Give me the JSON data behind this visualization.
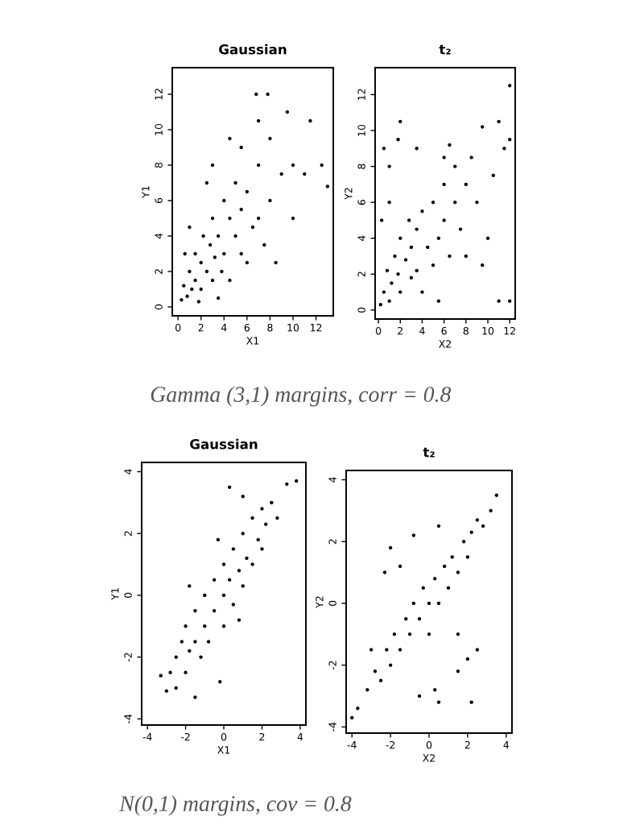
{
  "chart_data": [
    {
      "type": "scatter",
      "title": "Gaussian",
      "xlabel": "X1",
      "ylabel": "Y1",
      "xlim": [
        -0.5,
        13.5
      ],
      "ylim": [
        -0.5,
        13.5
      ],
      "xticks": [
        0,
        2,
        4,
        6,
        8,
        10,
        12
      ],
      "yticks": [
        0,
        2,
        4,
        6,
        8,
        10,
        12
      ],
      "grid": false,
      "legend": false,
      "marker": "circle",
      "annotations": [
        "Gamma (3,1) margins, corr = 0.8"
      ],
      "series": [
        {
          "color": "#000000",
          "x": [
            0.3,
            0.5,
            0.8,
            1,
            1.2,
            1.5,
            1.5,
            2,
            2,
            2.2,
            2.5,
            2.8,
            3,
            3,
            3.2,
            3.5,
            3.8,
            4,
            4,
            4.5,
            4.5,
            5,
            5,
            5.5,
            5.5,
            6,
            6,
            6.5,
            7,
            7,
            7.5,
            8,
            8,
            8.5,
            9,
            10,
            11,
            11.5,
            12.5,
            13,
            10,
            7,
            7.8,
            6.8,
            4.5,
            3,
            2.5,
            1,
            0.6,
            9.5,
            3.5,
            1.8,
            5.5
          ],
          "values": [
            0.4,
            1.2,
            0.6,
            2,
            1,
            3,
            1.5,
            2.5,
            1,
            4,
            2,
            3.5,
            1.5,
            5,
            2.8,
            4,
            2,
            6,
            3,
            5,
            1.5,
            4,
            7,
            3,
            5.5,
            6.5,
            2.5,
            4.5,
            5,
            8,
            3.5,
            6,
            9.5,
            2.5,
            7.5,
            8,
            7.5,
            10.5,
            8,
            6.8,
            5,
            10.5,
            12,
            12,
            9.5,
            8,
            7,
            4.5,
            3,
            11,
            0.5,
            0.3,
            9
          ]
        }
      ]
    },
    {
      "type": "scatter",
      "title": "t₂",
      "xlabel": "X2",
      "ylabel": "Y2",
      "xlim": [
        -0.3,
        12.5
      ],
      "ylim": [
        -0.5,
        13.5
      ],
      "xticks": [
        0,
        2,
        4,
        6,
        8,
        10,
        12
      ],
      "yticks": [
        0,
        2,
        4,
        6,
        8,
        10,
        12
      ],
      "grid": false,
      "legend": false,
      "marker": "circle",
      "series": [
        {
          "color": "#000000",
          "x": [
            0.2,
            0.5,
            0.8,
            1,
            1.2,
            1.5,
            1.8,
            2,
            2,
            2.5,
            2.8,
            3,
            3,
            3.5,
            3.5,
            4,
            4,
            4.5,
            5,
            5,
            5.5,
            6,
            6,
            6.5,
            7,
            7,
            7.5,
            8,
            8.5,
            9,
            9.5,
            10,
            11,
            11.5,
            12,
            12,
            10.5,
            0.5,
            1,
            1,
            2,
            1.8,
            3.5,
            6.5,
            6,
            8,
            9.5,
            11,
            12,
            5.5,
            0.3
          ],
          "values": [
            0.3,
            1,
            2.2,
            0.5,
            1.5,
            3,
            2,
            4,
            1,
            2.8,
            5,
            1.8,
            3.5,
            4.5,
            2.2,
            5.5,
            1,
            3.5,
            6,
            2.5,
            4,
            7,
            5,
            3,
            8,
            6,
            4.5,
            7,
            8.5,
            6,
            10.2,
            4,
            10.5,
            9,
            9.5,
            12.5,
            7.5,
            9,
            8,
            6,
            10.5,
            9.5,
            9,
            9.2,
            8.5,
            3,
            2.5,
            0.5,
            0.5,
            0.5,
            5
          ]
        }
      ]
    },
    {
      "type": "scatter",
      "title": "Gaussian",
      "xlabel": "X1",
      "ylabel": "Y1",
      "xlim": [
        -4.3,
        4.3
      ],
      "ylim": [
        -4.2,
        4.3
      ],
      "xticks": [
        -4,
        -2,
        0,
        2,
        4
      ],
      "yticks": [
        -4,
        -2,
        0,
        2,
        4
      ],
      "grid": false,
      "legend": false,
      "marker": "circle",
      "annotations": [
        "N(0,1) margins, cov = 0.8"
      ],
      "series": [
        {
          "color": "#000000",
          "x": [
            -3,
            -2.8,
            -2.5,
            -2.5,
            -2.2,
            -2,
            -2,
            -1.8,
            -1.5,
            -1.5,
            -1.2,
            -1,
            -1,
            -0.8,
            -0.5,
            -0.5,
            0,
            0,
            0,
            0.3,
            0.5,
            0.5,
            0.8,
            1,
            1,
            1.2,
            1.5,
            1.5,
            1.8,
            2,
            2,
            2.2,
            2.5,
            2.8,
            1,
            -0.2,
            -1.8,
            0.3,
            3.3,
            3.8,
            -1.5,
            -3.3,
            0.8,
            -0.3
          ],
          "values": [
            -3.1,
            -2.5,
            -3,
            -2,
            -1.5,
            -2.5,
            -1,
            -1.8,
            -0.5,
            -1.5,
            -2,
            0,
            -1,
            -1.5,
            0.5,
            -0.5,
            0,
            1,
            -1,
            0.5,
            1.5,
            -0.3,
            0.8,
            2,
            0.3,
            1.2,
            2.5,
            1,
            1.8,
            2.8,
            1.5,
            2.3,
            3,
            2.5,
            3.2,
            -2.8,
            0.3,
            3.5,
            3.6,
            3.7,
            -3.3,
            -2.6,
            -0.8,
            1.8
          ]
        }
      ]
    },
    {
      "type": "scatter",
      "title": "t₂",
      "xlabel": "X2",
      "ylabel": "Y2",
      "xlim": [
        -4.3,
        4.3
      ],
      "ylim": [
        -4.2,
        4.3
      ],
      "xticks": [
        -4,
        -2,
        0,
        2,
        4
      ],
      "yticks": [
        -4,
        -2,
        0,
        2,
        4
      ],
      "grid": false,
      "legend": false,
      "marker": "circle",
      "series": [
        {
          "color": "#000000",
          "x": [
            -4,
            -3.7,
            -3.2,
            -2.8,
            -2.5,
            -2.2,
            -2,
            -1.8,
            -1.5,
            -1.2,
            -1,
            -0.8,
            -0.5,
            -0.3,
            0,
            0,
            0.3,
            0.5,
            0.8,
            1,
            1.2,
            1.5,
            1.8,
            2,
            2.2,
            2.5,
            2.8,
            3.2,
            3.5,
            -2,
            -1.5,
            -2.3,
            0.3,
            0.5,
            2,
            2.2,
            1.5,
            -0.5,
            -3,
            1.5,
            -0.8,
            0.5,
            2.5
          ],
          "values": [
            -3.7,
            -3.4,
            -2.8,
            -2.2,
            -2.5,
            -1.5,
            -2,
            -1,
            -1.5,
            -0.5,
            -1,
            0,
            -0.5,
            0.5,
            0,
            -1,
            0.8,
            0,
            1.2,
            0.5,
            1.5,
            1,
            2,
            1.5,
            2.3,
            2.7,
            2.5,
            3,
            3.5,
            1.8,
            1.2,
            1,
            -2.8,
            -3.2,
            -1.8,
            -3.2,
            -1,
            -3,
            -1.5,
            -2.2,
            2.2,
            2.5,
            -1.5
          ]
        }
      ]
    }
  ]
}
